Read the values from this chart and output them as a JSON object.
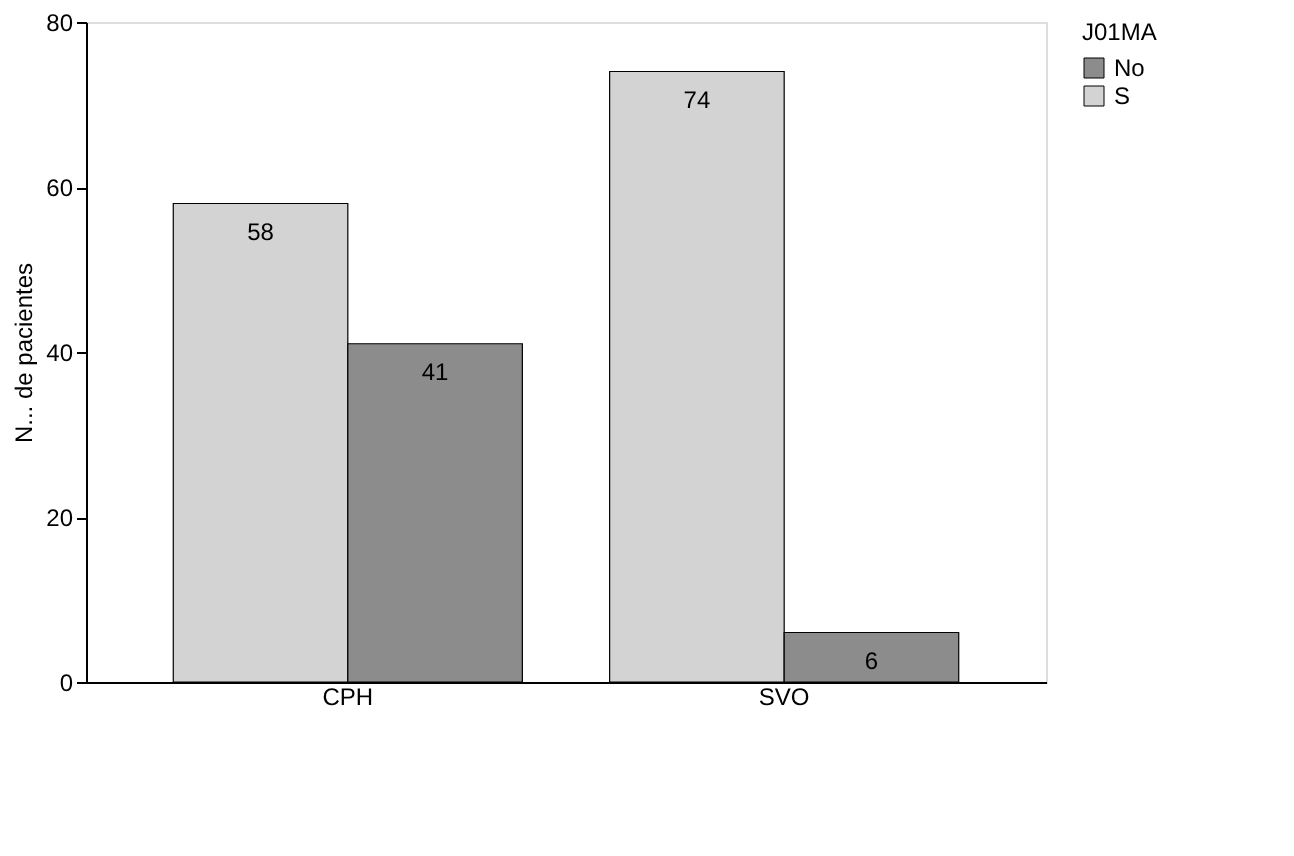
{
  "chart_data": {
    "type": "bar",
    "ylabel": "N... de pacientes",
    "legend_title": "J01MA",
    "categories": [
      "CPH",
      "SVO"
    ],
    "series": [
      {
        "name": "S",
        "color": "#d3d3d3",
        "values": [
          58,
          74
        ]
      },
      {
        "name": "No",
        "color": "#8c8c8c",
        "values": [
          41,
          6
        ]
      }
    ],
    "ylim": [
      0,
      80
    ],
    "yticks": [
      0,
      20,
      40,
      60,
      80
    ],
    "grid": false,
    "legend": "right",
    "data_labels": true
  }
}
